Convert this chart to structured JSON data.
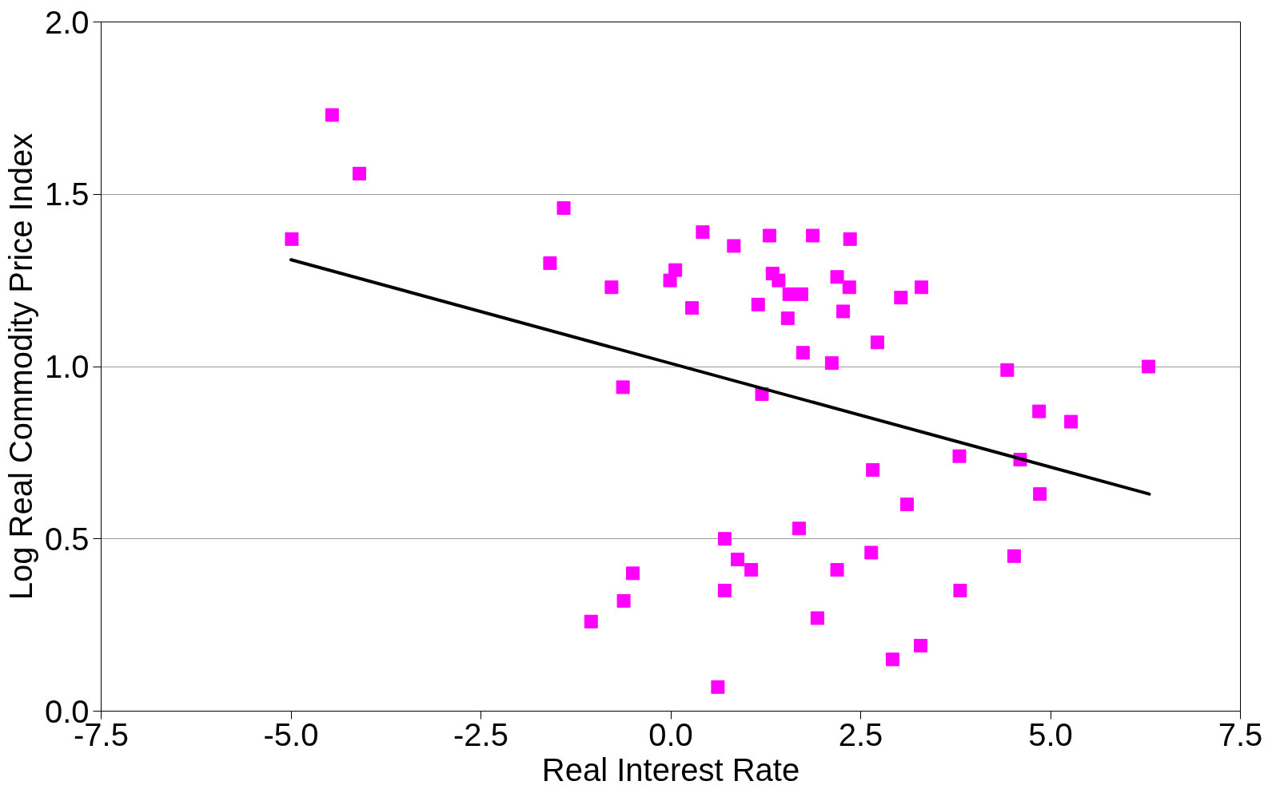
{
  "chart_data": {
    "type": "scatter",
    "xlabel": "Real Interest Rate",
    "ylabel": "Log Real Commodity Price Index",
    "xlim": [
      -7.5,
      7.5
    ],
    "ylim": [
      0,
      2
    ],
    "xticks": [
      {
        "value": -7.5,
        "label": "-7.5"
      },
      {
        "value": -5,
        "label": "-5.0"
      },
      {
        "value": -2.5,
        "label": "-2.5"
      },
      {
        "value": 0,
        "label": "0.0"
      },
      {
        "value": 2.5,
        "label": "2.5"
      },
      {
        "value": 5,
        "label": "5.0"
      },
      {
        "value": 7.5,
        "label": "7.5"
      }
    ],
    "yticks": [
      {
        "value": 0,
        "label": "0.0"
      },
      {
        "value": 0.5,
        "label": "0.5"
      },
      {
        "value": 1,
        "label": "1.0"
      },
      {
        "value": 1.5,
        "label": "1.5"
      },
      {
        "value": 2,
        "label": "2.0"
      }
    ],
    "grid": "y",
    "series": [
      {
        "marker": "square",
        "color": "#ff00ff",
        "x": [
          -4.99,
          -4.46,
          -4.1,
          -1.59,
          -1.41,
          -0.78,
          -0.63,
          -0.01,
          0.06,
          0.28,
          0.42,
          0.83,
          1.3,
          1.15,
          1.2,
          1.34,
          1.42,
          1.56,
          1.72,
          1.54,
          1.87,
          2.36,
          2.19,
          2.35,
          2.27,
          3.3,
          3.03,
          2.72,
          1.74,
          2.12,
          4.43,
          6.29,
          4.85,
          5.27,
          3.8,
          4.6,
          2.66,
          4.86,
          3.11,
          1.69,
          0.71,
          2.64,
          4.52,
          0.88,
          1.06,
          2.19,
          0.71,
          3.81,
          1.93,
          3.29,
          2.92,
          0.62,
          -0.5,
          -0.62,
          -1.05
        ],
        "values": [
          1.37,
          1.73,
          1.56,
          1.3,
          1.46,
          1.23,
          0.94,
          1.25,
          1.28,
          1.17,
          1.39,
          1.35,
          1.38,
          1.18,
          0.92,
          1.27,
          1.25,
          1.21,
          1.21,
          1.14,
          1.38,
          1.37,
          1.26,
          1.23,
          1.16,
          1.23,
          1.2,
          1.07,
          1.04,
          1.01,
          0.99,
          1.0,
          0.87,
          0.84,
          0.74,
          0.73,
          0.7,
          0.63,
          0.6,
          0.53,
          0.5,
          0.46,
          0.45,
          0.44,
          0.41,
          0.41,
          0.35,
          0.35,
          0.27,
          0.19,
          0.15,
          0.07,
          0.4,
          0.32,
          0.26
        ]
      },
      {
        "type": "line",
        "color": "#000000",
        "x": [
          -5.0,
          6.3
        ],
        "values": [
          1.31,
          0.63
        ]
      }
    ]
  }
}
